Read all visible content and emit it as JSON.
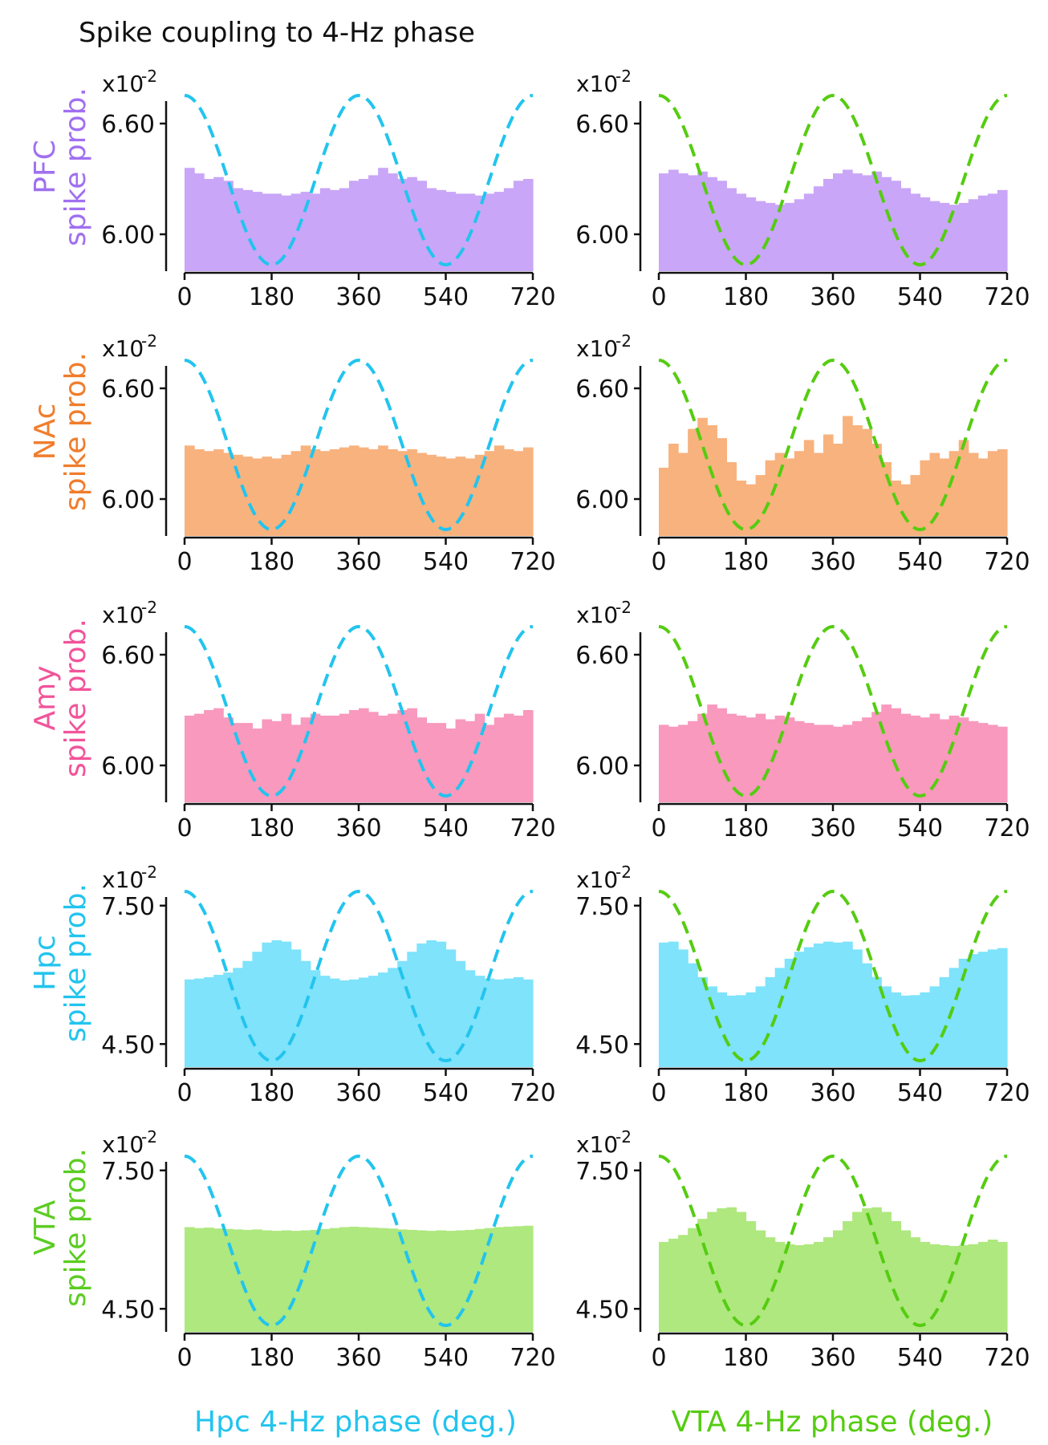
{
  "title": "Spike coupling to 4-Hz phase",
  "colors": {
    "hpc_phase": "#22c4ee",
    "vta_phase": "#55cc11",
    "PFC": "#c9a6f7",
    "PFC_text": "#a070f0",
    "NAc": "#f8b27e",
    "NAc_text": "#f07d2c",
    "Amy": "#f899bd",
    "Amy_text": "#f2549a",
    "Hpc": "#7ee3fb",
    "Hpc_text": "#22c4ee",
    "VTA": "#aee87e",
    "VTA_text": "#5ccc22"
  },
  "columns": [
    {
      "xlabel": "Hpc 4-Hz phase (deg.)",
      "color_key": "hpc_phase"
    },
    {
      "xlabel": "VTA 4-Hz phase (deg.)",
      "color_key": "vta_phase"
    }
  ],
  "rows": [
    {
      "region": "PFC",
      "ylabel": "spike prob.",
      "exponent_label": "x10",
      "exponent": "-2",
      "yticks": [
        6.0,
        6.6
      ],
      "ytick_labels": [
        "6.00",
        "6.60"
      ],
      "ylim": [
        5.8,
        6.8
      ]
    },
    {
      "region": "NAc",
      "ylabel": "spike prob.",
      "exponent_label": "x10",
      "exponent": "-2",
      "yticks": [
        6.0,
        6.6
      ],
      "ytick_labels": [
        "6.00",
        "6.60"
      ],
      "ylim": [
        5.8,
        6.8
      ]
    },
    {
      "region": "Amy",
      "ylabel": "spike prob.",
      "exponent_label": "x10",
      "exponent": "-2",
      "yticks": [
        6.0,
        6.6
      ],
      "ytick_labels": [
        "6.00",
        "6.60"
      ],
      "ylim": [
        5.8,
        6.8
      ]
    },
    {
      "region": "Hpc",
      "ylabel": "spike prob.",
      "exponent_label": "x10",
      "exponent": "-2",
      "yticks": [
        4.5,
        7.5
      ],
      "ytick_labels": [
        "4.50",
        "7.50"
      ],
      "ylim": [
        4.0,
        8.0
      ]
    },
    {
      "region": "VTA",
      "ylabel": "spike prob.",
      "exponent_label": "x10",
      "exponent": "-2",
      "yticks": [
        4.5,
        7.5
      ],
      "ytick_labels": [
        "4.50",
        "7.50"
      ],
      "ylim": [
        4.0,
        8.0
      ]
    }
  ],
  "chart_data": {
    "type": "bar",
    "title": "Spike coupling to 4-Hz phase",
    "x_range": [
      0,
      720
    ],
    "x_ticks": [
      0,
      180,
      360,
      540,
      720
    ],
    "x_tick_labels": [
      "0",
      "180",
      "360",
      "540",
      "720"
    ],
    "bin_count": 36,
    "bin_width_deg": 20,
    "reference_line": "dashed cosine of 4-Hz phase, peaks at 0, 360, 720 and troughs at 180, 540",
    "panels": [
      {
        "row": "PFC",
        "column": "Hpc 4-Hz phase (deg.)",
        "values": [
          6.36,
          6.33,
          6.3,
          6.31,
          6.29,
          6.25,
          6.24,
          6.23,
          6.22,
          6.22,
          6.21,
          6.22,
          6.23,
          6.22,
          6.25,
          6.24,
          6.25,
          6.29,
          6.3,
          6.32,
          6.36,
          6.33,
          6.3,
          6.31,
          6.29,
          6.25,
          6.24,
          6.23,
          6.22,
          6.22,
          6.21,
          6.22,
          6.23,
          6.25,
          6.29,
          6.3
        ]
      },
      {
        "row": "PFC",
        "column": "VTA 4-Hz phase (deg.)",
        "values": [
          6.33,
          6.35,
          6.33,
          6.32,
          6.34,
          6.31,
          6.29,
          6.25,
          6.22,
          6.2,
          6.18,
          6.17,
          6.16,
          6.17,
          6.19,
          6.22,
          6.26,
          6.3,
          6.33,
          6.35,
          6.33,
          6.32,
          6.34,
          6.31,
          6.29,
          6.25,
          6.22,
          6.2,
          6.18,
          6.17,
          6.16,
          6.17,
          6.19,
          6.21,
          6.22,
          6.24
        ]
      },
      {
        "row": "NAc",
        "column": "Hpc 4-Hz phase (deg.)",
        "values": [
          6.29,
          6.27,
          6.26,
          6.27,
          6.25,
          6.24,
          6.23,
          6.22,
          6.23,
          6.22,
          6.24,
          6.26,
          6.29,
          6.27,
          6.26,
          6.27,
          6.28,
          6.29,
          6.28,
          6.27,
          6.29,
          6.27,
          6.26,
          6.27,
          6.25,
          6.24,
          6.23,
          6.22,
          6.23,
          6.22,
          6.24,
          6.26,
          6.29,
          6.27,
          6.26,
          6.28
        ]
      },
      {
        "row": "NAc",
        "column": "VTA 4-Hz phase (deg.)",
        "values": [
          6.17,
          6.3,
          6.25,
          6.38,
          6.44,
          6.4,
          6.33,
          6.2,
          6.1,
          6.08,
          6.13,
          6.21,
          6.25,
          6.22,
          6.26,
          6.32,
          6.25,
          6.35,
          6.3,
          6.45,
          6.4,
          6.38,
          6.3,
          6.2,
          6.1,
          6.08,
          6.13,
          6.21,
          6.25,
          6.22,
          6.26,
          6.32,
          6.25,
          6.22,
          6.26,
          6.27
        ]
      },
      {
        "row": "Amy",
        "column": "Hpc 4-Hz phase (deg.)",
        "values": [
          6.27,
          6.28,
          6.3,
          6.31,
          6.26,
          6.23,
          6.23,
          6.2,
          6.25,
          6.24,
          6.28,
          6.22,
          6.26,
          6.28,
          6.27,
          6.27,
          6.28,
          6.3,
          6.31,
          6.29,
          6.27,
          6.28,
          6.3,
          6.31,
          6.26,
          6.23,
          6.23,
          6.2,
          6.25,
          6.24,
          6.28,
          6.22,
          6.26,
          6.28,
          6.27,
          6.3
        ]
      },
      {
        "row": "Amy",
        "column": "VTA 4-Hz phase (deg.)",
        "values": [
          6.22,
          6.21,
          6.22,
          6.24,
          6.28,
          6.33,
          6.31,
          6.28,
          6.27,
          6.26,
          6.28,
          6.25,
          6.27,
          6.26,
          6.24,
          6.23,
          6.22,
          6.22,
          6.21,
          6.22,
          6.24,
          6.26,
          6.29,
          6.33,
          6.31,
          6.28,
          6.27,
          6.26,
          6.28,
          6.25,
          6.27,
          6.26,
          6.24,
          6.23,
          6.22,
          6.21
        ]
      },
      {
        "row": "Hpc",
        "column": "Hpc 4-Hz phase (deg.)",
        "values": [
          5.9,
          5.92,
          5.95,
          6.0,
          6.05,
          6.15,
          6.3,
          6.5,
          6.7,
          6.75,
          6.72,
          6.55,
          6.3,
          6.1,
          5.98,
          5.92,
          5.88,
          5.9,
          5.94,
          5.98,
          6.05,
          6.15,
          6.3,
          6.5,
          6.68,
          6.75,
          6.72,
          6.55,
          6.3,
          6.1,
          5.98,
          5.92,
          5.9,
          5.92,
          5.95,
          5.9
        ]
      },
      {
        "row": "Hpc",
        "column": "VTA 4-Hz phase (deg.)",
        "values": [
          6.7,
          6.72,
          6.55,
          6.25,
          5.95,
          5.75,
          5.62,
          5.55,
          5.56,
          5.62,
          5.75,
          5.95,
          6.15,
          6.35,
          6.5,
          6.6,
          6.68,
          6.72,
          6.7,
          6.72,
          6.55,
          6.25,
          5.95,
          5.75,
          5.62,
          5.55,
          5.56,
          5.62,
          5.75,
          5.95,
          6.15,
          6.35,
          6.45,
          6.5,
          6.55,
          6.58
        ]
      },
      {
        "row": "VTA",
        "column": "Hpc 4-Hz phase (deg.)",
        "values": [
          6.27,
          6.25,
          6.26,
          6.24,
          6.23,
          6.22,
          6.21,
          6.22,
          6.2,
          6.19,
          6.2,
          6.19,
          6.2,
          6.21,
          6.23,
          6.25,
          6.27,
          6.28,
          6.27,
          6.26,
          6.25,
          6.24,
          6.22,
          6.21,
          6.2,
          6.19,
          6.2,
          6.19,
          6.2,
          6.21,
          6.23,
          6.25,
          6.27,
          6.28,
          6.29,
          6.3
        ]
      },
      {
        "row": "VTA",
        "column": "VTA 4-Hz phase (deg.)",
        "values": [
          5.95,
          6.02,
          6.1,
          6.25,
          6.45,
          6.6,
          6.68,
          6.7,
          6.6,
          6.4,
          6.2,
          6.05,
          5.95,
          5.9,
          5.88,
          5.9,
          5.95,
          6.05,
          6.2,
          6.4,
          6.6,
          6.68,
          6.7,
          6.6,
          6.4,
          6.2,
          6.05,
          5.95,
          5.9,
          5.88,
          5.86,
          5.88,
          5.9,
          5.95,
          6.0,
          5.95
        ]
      }
    ]
  }
}
